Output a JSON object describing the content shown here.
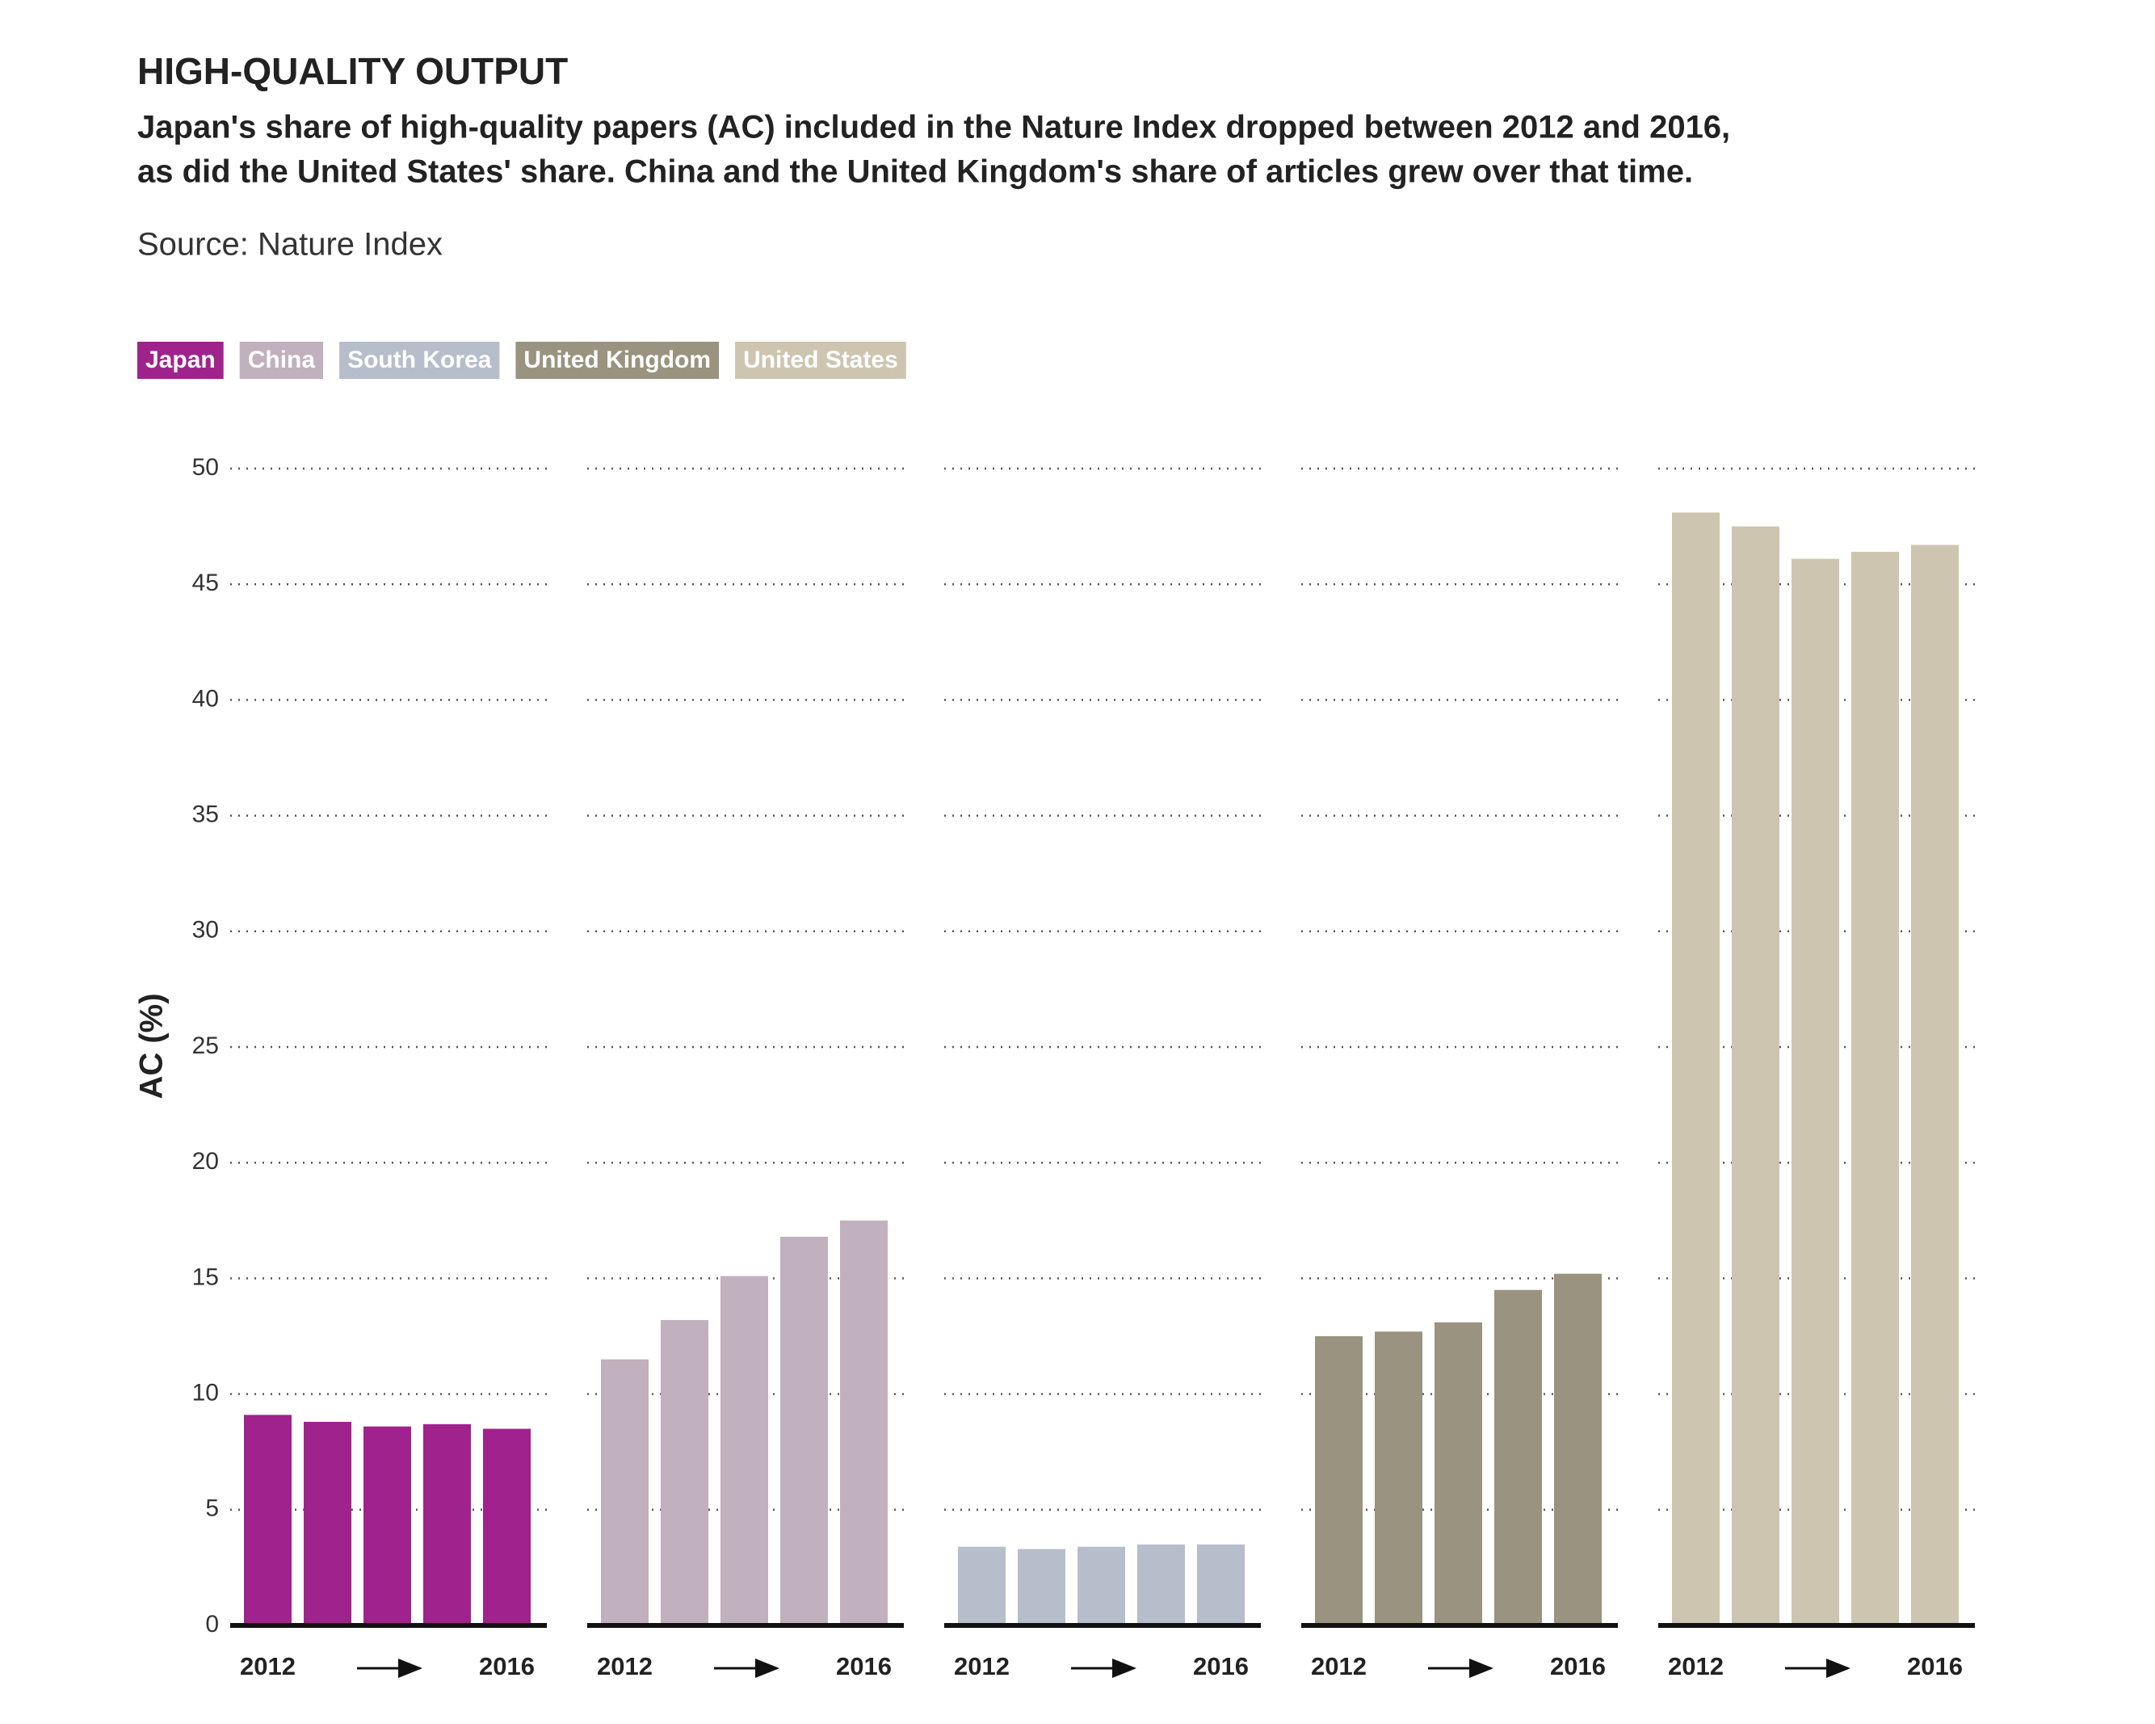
{
  "chart_data": {
    "type": "bar",
    "title": "HIGH-QUALITY OUTPUT",
    "subtitle": [
      "Japan's share of high-quality papers (AC) included in the Nature Index dropped between 2012 and 2016,",
      "as did the United States' share. China and the United Kingdom's share of articles grew over that time."
    ],
    "source": "Source: Nature Index",
    "y_label": "AC (%)",
    "categories": [
      "2012",
      null,
      null,
      null,
      "2016"
    ],
    "ylim": [
      0,
      50
    ],
    "yticks": [
      0,
      5,
      10,
      15,
      20,
      25,
      30,
      35,
      40,
      45,
      50
    ],
    "grid": true,
    "series": [
      {
        "name": "Japan",
        "color": "#a0228d",
        "values": [
          9.1,
          8.8,
          8.6,
          8.7,
          8.5
        ]
      },
      {
        "name": "China",
        "color": "#c1b0bd",
        "values": [
          11.5,
          13.2,
          15.1,
          16.8,
          17.5
        ]
      },
      {
        "name": "South Korea",
        "color": "#b6bdcb",
        "values": [
          3.4,
          3.3,
          3.4,
          3.5,
          3.5
        ]
      },
      {
        "name": "United Kingdom",
        "color": "#99937f",
        "values": [
          12.5,
          12.7,
          13.1,
          14.5,
          15.2
        ]
      },
      {
        "name": "United States",
        "color": "#cdc5b0",
        "values": [
          48.1,
          47.5,
          46.1,
          46.4,
          46.7
        ]
      }
    ]
  }
}
